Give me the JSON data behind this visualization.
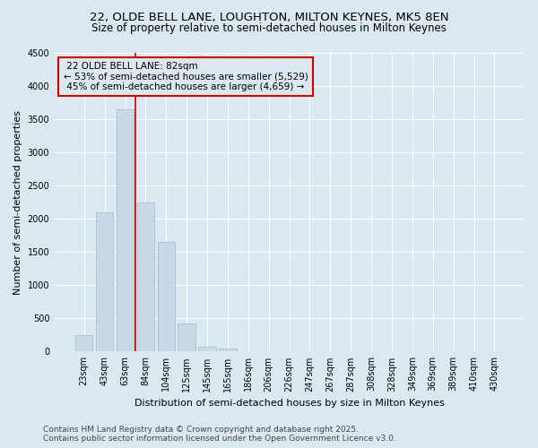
{
  "title_line1": "22, OLDE BELL LANE, LOUGHTON, MILTON KEYNES, MK5 8EN",
  "title_line2": "Size of property relative to semi-detached houses in Milton Keynes",
  "xlabel": "Distribution of semi-detached houses by size in Milton Keynes",
  "ylabel": "Number of semi-detached properties",
  "footnote": "Contains HM Land Registry data © Crown copyright and database right 2025.\nContains public sector information licensed under the Open Government Licence v3.0.",
  "categories": [
    "23sqm",
    "43sqm",
    "63sqm",
    "84sqm",
    "104sqm",
    "125sqm",
    "145sqm",
    "165sqm",
    "186sqm",
    "206sqm",
    "226sqm",
    "247sqm",
    "267sqm",
    "287sqm",
    "308sqm",
    "328sqm",
    "349sqm",
    "369sqm",
    "389sqm",
    "410sqm",
    "430sqm"
  ],
  "values": [
    250,
    2100,
    3650,
    2250,
    1650,
    430,
    80,
    50,
    0,
    0,
    0,
    0,
    0,
    0,
    0,
    0,
    0,
    0,
    0,
    0,
    0
  ],
  "bar_color": "#c9d9e8",
  "bar_edge_color": "#a8c0d4",
  "property_line_label": "22 OLDE BELL LANE: 82sqm",
  "pct_smaller": 53,
  "count_smaller": 5529,
  "pct_larger": 45,
  "count_larger": 4659,
  "annotation_box_color": "#cc0000",
  "ylim": [
    0,
    4500
  ],
  "yticks": [
    0,
    500,
    1000,
    1500,
    2000,
    2500,
    3000,
    3500,
    4000,
    4500
  ],
  "background_color": "#dce8f0",
  "grid_color": "#ffffff",
  "title_fontsize": 9.5,
  "subtitle_fontsize": 8.5,
  "axis_label_fontsize": 8,
  "tick_fontsize": 7,
  "footnote_fontsize": 6.5,
  "annot_fontsize": 7.5
}
